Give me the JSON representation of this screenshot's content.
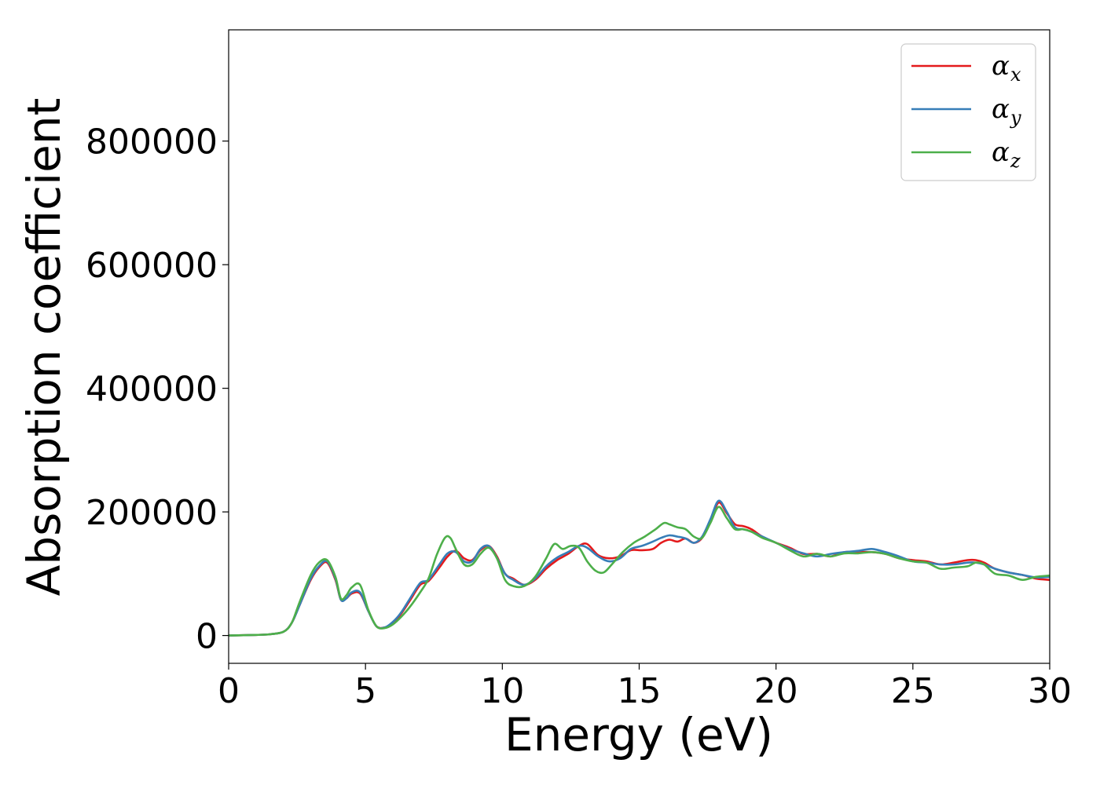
{
  "chart_data": {
    "type": "line",
    "title": "",
    "xlabel": "Energy (eV)",
    "ylabel": "Absorption coefficient",
    "xlim": [
      0,
      30
    ],
    "ylim": [
      -45000,
      980000
    ],
    "xticks": [
      0,
      5,
      10,
      15,
      20,
      25,
      30
    ],
    "yticks": [
      0,
      200000,
      400000,
      600000,
      800000
    ],
    "grid": false,
    "legend_position": "top-right",
    "series": [
      {
        "name": "αx",
        "legend_symbol": "α",
        "legend_subscript": "x",
        "color": "#e41a1c",
        "x": [
          0,
          1,
          1.5,
          2,
          2.3,
          2.6,
          3.0,
          3.3,
          3.6,
          3.9,
          4.1,
          4.3,
          4.5,
          4.8,
          5.1,
          5.4,
          5.7,
          6.0,
          6.3,
          6.6,
          7.0,
          7.3,
          7.7,
          8.0,
          8.3,
          8.6,
          8.9,
          9.2,
          9.5,
          9.8,
          10.1,
          10.4,
          10.8,
          11.2,
          11.6,
          12.0,
          12.4,
          12.8,
          13.1,
          13.5,
          13.9,
          14.3,
          14.7,
          15.1,
          15.5,
          15.8,
          16.1,
          16.4,
          16.7,
          17.0,
          17.3,
          17.6,
          17.9,
          18.2,
          18.5,
          18.8,
          19.1,
          19.5,
          20.0,
          20.5,
          21.0,
          21.5,
          22.0,
          22.5,
          23.0,
          23.5,
          24.0,
          24.5,
          25.0,
          25.5,
          26.0,
          26.5,
          27.0,
          27.3,
          27.6,
          28.0,
          28.5,
          29.0,
          29.5,
          30.0
        ],
        "y": [
          0,
          1000,
          2000,
          6000,
          20000,
          50000,
          90000,
          110000,
          118000,
          90000,
          58000,
          60000,
          68000,
          68000,
          40000,
          15000,
          13000,
          20000,
          35000,
          55000,
          82000,
          88000,
          110000,
          128000,
          137000,
          125000,
          122000,
          138000,
          145000,
          128000,
          100000,
          92000,
          82000,
          90000,
          108000,
          122000,
          132000,
          145000,
          148000,
          130000,
          125000,
          128000,
          138000,
          138000,
          140000,
          150000,
          155000,
          152000,
          157000,
          150000,
          158000,
          185000,
          215000,
          198000,
          180000,
          177000,
          172000,
          160000,
          150000,
          142000,
          132000,
          132000,
          128000,
          135000,
          135000,
          135000,
          132000,
          125000,
          122000,
          120000,
          115000,
          118000,
          122000,
          122000,
          118000,
          108000,
          102000,
          98000,
          92000,
          90000
        ]
      },
      {
        "name": "αy",
        "legend_symbol": "α",
        "legend_subscript": "y",
        "color": "#377eb8",
        "x": [
          0,
          1,
          1.5,
          2,
          2.3,
          2.6,
          3.0,
          3.3,
          3.6,
          3.9,
          4.1,
          4.3,
          4.5,
          4.8,
          5.1,
          5.4,
          5.7,
          6.0,
          6.3,
          6.6,
          7.0,
          7.3,
          7.7,
          8.0,
          8.3,
          8.6,
          8.9,
          9.2,
          9.5,
          9.8,
          10.1,
          10.4,
          10.8,
          11.2,
          11.6,
          12.0,
          12.4,
          12.8,
          13.1,
          13.5,
          13.9,
          14.3,
          14.7,
          15.1,
          15.5,
          15.8,
          16.1,
          16.4,
          16.7,
          17.0,
          17.3,
          17.6,
          17.9,
          18.2,
          18.5,
          18.8,
          19.1,
          19.5,
          20.0,
          20.5,
          21.0,
          21.5,
          22.0,
          22.5,
          23.0,
          23.5,
          24.0,
          24.5,
          25.0,
          25.5,
          26.0,
          26.5,
          27.0,
          27.3,
          27.6,
          28.0,
          28.5,
          29.0,
          29.5,
          30.0
        ],
        "y": [
          0,
          1000,
          2000,
          6000,
          20000,
          50000,
          92000,
          112000,
          120000,
          92000,
          58000,
          60000,
          70000,
          70000,
          40000,
          15000,
          13000,
          22000,
          37000,
          58000,
          85000,
          90000,
          115000,
          133000,
          135000,
          120000,
          120000,
          140000,
          145000,
          126000,
          100000,
          90000,
          82000,
          92000,
          112000,
          126000,
          135000,
          145000,
          142000,
          128000,
          120000,
          125000,
          140000,
          145000,
          152000,
          158000,
          162000,
          160000,
          157000,
          150000,
          160000,
          188000,
          218000,
          200000,
          175000,
          172000,
          168000,
          160000,
          150000,
          140000,
          133000,
          128000,
          132000,
          135000,
          137000,
          140000,
          135000,
          128000,
          120000,
          118000,
          115000,
          115000,
          118000,
          118000,
          115000,
          108000,
          102000,
          98000,
          94000,
          95000
        ]
      },
      {
        "name": "αz",
        "legend_symbol": "α",
        "legend_subscript": "z",
        "color": "#4daf4a",
        "x": [
          0,
          1,
          1.5,
          2,
          2.3,
          2.6,
          3.0,
          3.3,
          3.6,
          3.9,
          4.1,
          4.3,
          4.5,
          4.8,
          5.1,
          5.4,
          5.7,
          6.0,
          6.3,
          6.6,
          7.0,
          7.3,
          7.6,
          7.9,
          8.1,
          8.3,
          8.6,
          8.9,
          9.2,
          9.5,
          9.8,
          10.1,
          10.4,
          10.8,
          11.2,
          11.6,
          11.9,
          12.2,
          12.5,
          12.8,
          13.1,
          13.4,
          13.7,
          14.0,
          14.4,
          14.8,
          15.2,
          15.6,
          15.9,
          16.1,
          16.4,
          16.7,
          17.0,
          17.3,
          17.6,
          17.9,
          18.2,
          18.5,
          18.8,
          19.1,
          19.5,
          20.0,
          20.5,
          21.0,
          21.5,
          22.0,
          22.5,
          23.0,
          23.5,
          24.0,
          24.5,
          25.0,
          25.5,
          26.0,
          26.5,
          27.0,
          27.3,
          27.6,
          28.0,
          28.5,
          29.0,
          29.5,
          30.0
        ],
        "y": [
          0,
          1000,
          2000,
          6000,
          20000,
          55000,
          98000,
          118000,
          122000,
          95000,
          60000,
          65000,
          78000,
          82000,
          42000,
          15000,
          12000,
          18000,
          30000,
          45000,
          70000,
          92000,
          130000,
          158000,
          158000,
          140000,
          115000,
          115000,
          132000,
          142000,
          125000,
          90000,
          80000,
          80000,
          95000,
          125000,
          148000,
          140000,
          145000,
          142000,
          120000,
          105000,
          102000,
          115000,
          135000,
          150000,
          160000,
          172000,
          182000,
          180000,
          175000,
          172000,
          160000,
          158000,
          182000,
          208000,
          190000,
          172000,
          172000,
          168000,
          158000,
          150000,
          138000,
          128000,
          132000,
          128000,
          133000,
          133000,
          135000,
          132000,
          125000,
          120000,
          118000,
          108000,
          110000,
          112000,
          118000,
          115000,
          100000,
          97000,
          90000,
          95000,
          97000
        ]
      }
    ]
  }
}
